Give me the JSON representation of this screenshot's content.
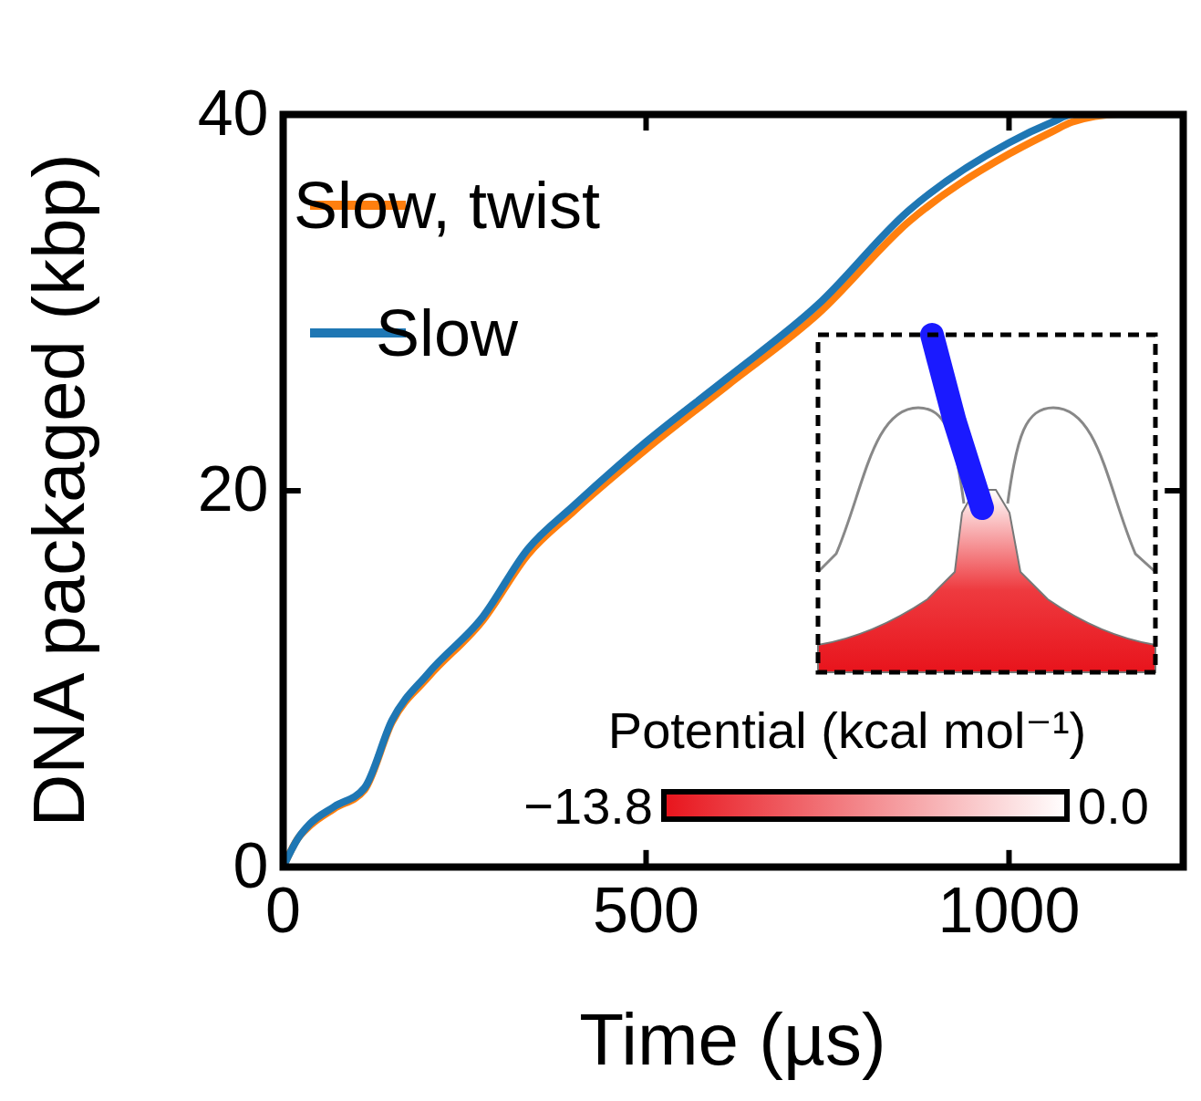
{
  "chart_data": {
    "type": "line",
    "x_label": "Time (µs)",
    "y_label": "DNA packaged (kbp)",
    "xlim": [
      0,
      1240
    ],
    "ylim": [
      0,
      40
    ],
    "xticks": [
      0,
      500,
      1000
    ],
    "yticks": [
      0,
      20,
      40
    ],
    "legend": "upper left",
    "x": [
      0,
      20,
      37,
      70,
      112,
      150,
      200,
      275,
      337,
      400,
      500,
      612,
      737,
      862,
      1000,
      1060,
      1087,
      1150,
      1240
    ],
    "series": [
      {
        "name": "Slow, twist",
        "color": "#ff7f0e",
        "values": [
          0,
          1.5,
          2.2,
          3.1,
          4.1,
          7.7,
          10.1,
          13.1,
          16.6,
          18.9,
          22.2,
          25.6,
          29.4,
          34.3,
          37.9,
          39.1,
          39.6,
          40,
          40
        ]
      },
      {
        "name": "Slow",
        "color": "#1f77b4",
        "values": [
          0,
          1.5,
          2.3,
          3.2,
          4.2,
          7.8,
          10.3,
          13.3,
          16.9,
          19.2,
          22.6,
          26.0,
          29.9,
          34.9,
          38.5,
          39.6,
          40,
          40,
          40
        ]
      }
    ],
    "colorbar_label": "Potential (kcal mol⁻¹)",
    "colorbar_range": [
      -13.8,
      0
    ],
    "colorbar_ticks": [
      {
        "value": -13.8,
        "label": "−13.8"
      },
      {
        "value": 0,
        "label": "0.0"
      }
    ]
  }
}
